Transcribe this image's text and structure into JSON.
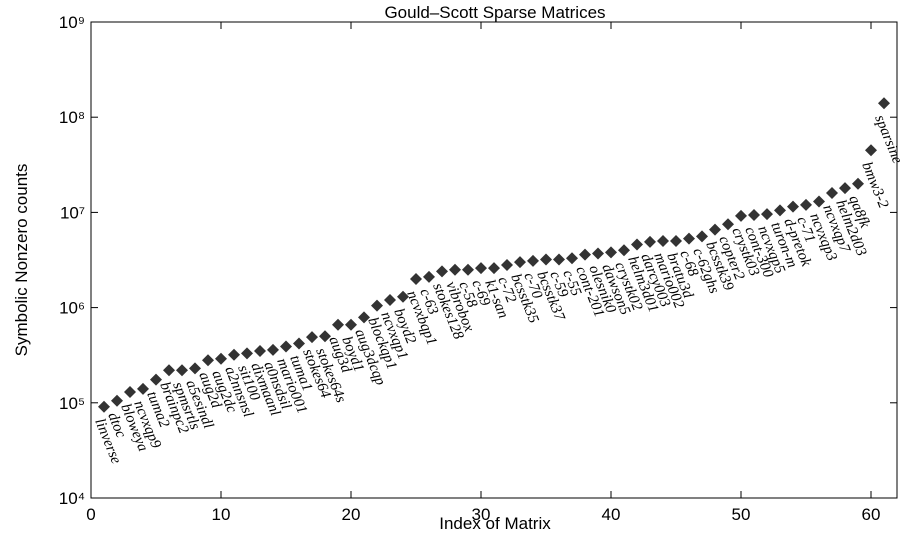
{
  "chart_data": {
    "type": "scatter",
    "title": "Gould–Scott Sparse Matrices",
    "x_label": "Index of Matrix",
    "y_label": "Symbolic Nonzero counts",
    "log_y": true,
    "grid": false,
    "color": "#333333",
    "xlim": [
      0,
      62
    ],
    "xticks": [
      0,
      10,
      20,
      30,
      40,
      50,
      60
    ],
    "ylim": [
      10000,
      1000000000
    ],
    "yticks": [
      {
        "value": 10000,
        "label": "10⁴"
      },
      {
        "value": 100000,
        "label": "10⁵"
      },
      {
        "value": 1000000,
        "label": "10⁶"
      },
      {
        "value": 10000000,
        "label": "10⁷"
      },
      {
        "value": 100000000,
        "label": "10⁸"
      },
      {
        "value": 1000000000,
        "label": "10⁹"
      }
    ],
    "x": [
      1,
      2,
      3,
      4,
      5,
      6,
      7,
      8,
      9,
      10,
      11,
      12,
      13,
      14,
      15,
      16,
      17,
      18,
      19,
      20,
      21,
      22,
      23,
      24,
      25,
      26,
      27,
      28,
      29,
      30,
      31,
      32,
      33,
      34,
      35,
      36,
      37,
      38,
      39,
      40,
      41,
      42,
      43,
      44,
      45,
      46,
      47,
      48,
      49,
      50,
      51,
      52,
      53,
      54,
      55,
      56,
      57,
      58,
      59,
      60,
      61
    ],
    "values": [
      91000,
      105000,
      130000,
      140000,
      175000,
      220000,
      220000,
      230000,
      280000,
      290000,
      320000,
      330000,
      350000,
      360000,
      390000,
      420000,
      490000,
      500000,
      660000,
      660000,
      790000,
      1050000,
      1200000,
      1300000,
      2000000,
      2100000,
      2400000,
      2500000,
      2500000,
      2600000,
      2600000,
      2800000,
      3000000,
      3100000,
      3200000,
      3200000,
      3300000,
      3600000,
      3700000,
      3800000,
      4000000,
      4600000,
      4900000,
      5000000,
      5000000,
      5300000,
      5600000,
      6600000,
      7500000,
      9200000,
      9400000,
      9600000,
      10500000,
      11500000,
      12000000,
      13000000,
      16000000,
      18000000,
      20000000,
      45000000,
      140000000
    ],
    "point_labels": [
      "linverse",
      "dtoc",
      "bloweya",
      "ncvxqp9",
      "tuma2",
      "brainpc2",
      "spmsrtls",
      "a5esindl",
      "aug2d",
      "aug2dc",
      "a2nnsnsl",
      "sit100",
      "dixmaanl",
      "a0nsdsil",
      "mario001",
      "tuma1",
      "stokes64",
      "stokes64s",
      "aug3d",
      "boyd1",
      "aug3dcqp",
      "blockqp1",
      "ncvxqp1",
      "boyd2",
      "ncvxbqp1",
      "c-63",
      "stokes128",
      "vibrobox",
      "c-58",
      "c-69",
      "k1-san",
      "c-72",
      "bcsstk35",
      "c-70",
      "bcsstk37",
      "c-59",
      "c-55",
      "cont-201",
      "olesnik0",
      "dawson5",
      "crystk02",
      "helm3d01",
      "darcy003",
      "mario002",
      "bratu3d",
      "c-68",
      "c-62ghs",
      "bcsstk39",
      "copter2",
      "crystk03",
      "cont-300",
      "ncvxqp5",
      "turon-m",
      "d-pretok",
      "c-71",
      "ncvxqp3",
      "ncvxqp7",
      "helm2d03",
      "qa8fk",
      "bmw3-2",
      "sparsine"
    ]
  }
}
